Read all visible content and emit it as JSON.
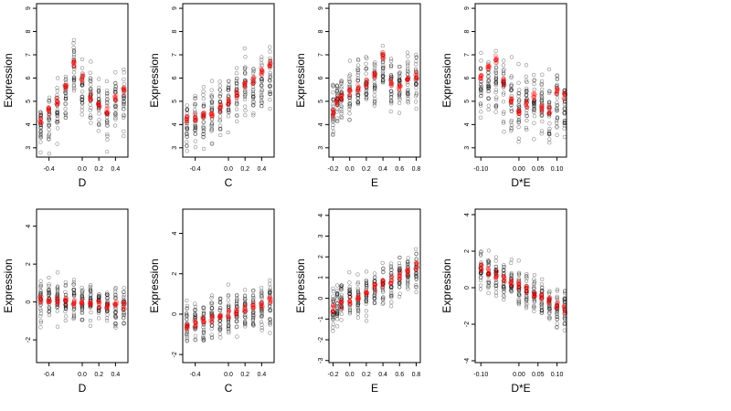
{
  "chart_data": [
    {
      "type": "scatter",
      "xlabel": "D",
      "ylabel": "Expression",
      "xlim": [
        -0.55,
        0.55
      ],
      "ylim": [
        2.6,
        9.2
      ],
      "xticks": [
        -0.4,
        0.0,
        0.2,
        0.4
      ],
      "xtick_labels": [
        "-0.4",
        "0.0",
        "0.2",
        "0.4"
      ],
      "yticks": [
        3,
        4,
        5,
        6,
        7,
        8,
        9
      ],
      "ytick_labels": [
        "3",
        "4",
        "5",
        "6",
        "7",
        "8",
        "9"
      ],
      "x_columns": [
        -0.5,
        -0.4,
        -0.3,
        -0.2,
        -0.1,
        0.0,
        0.1,
        0.2,
        0.3,
        0.4,
        0.5
      ],
      "data_y_center": [
        3.8,
        4.2,
        4.6,
        5.2,
        6.2,
        5.8,
        5.2,
        4.8,
        4.6,
        5.0,
        5.1
      ],
      "data_y_spread": 1.6,
      "fitted": {
        "x": [
          -0.5,
          -0.4,
          -0.3,
          -0.2,
          -0.1,
          0.0,
          0.1,
          0.2,
          0.3,
          0.4,
          0.5
        ],
        "y": [
          4.2,
          4.6,
          5.0,
          5.6,
          6.6,
          6.0,
          5.2,
          4.8,
          4.6,
          5.2,
          5.4
        ]
      }
    },
    {
      "type": "scatter",
      "xlabel": "C",
      "ylabel": "Expression",
      "xlim": [
        -0.55,
        0.55
      ],
      "ylim": [
        2.6,
        9.2
      ],
      "xticks": [
        -0.4,
        0.0,
        0.2,
        0.4
      ],
      "xtick_labels": [
        "-0.4",
        "0.0",
        "0.2",
        "0.4"
      ],
      "yticks": [
        3,
        4,
        5,
        6,
        7,
        8,
        9
      ],
      "ytick_labels": [
        "3",
        "4",
        "5",
        "6",
        "7",
        "8",
        "9"
      ],
      "x_columns": [
        -0.5,
        -0.4,
        -0.3,
        -0.2,
        -0.1,
        0.0,
        0.1,
        0.2,
        0.3,
        0.4,
        0.5
      ],
      "data_y_center": [
        4.0,
        4.2,
        4.3,
        4.4,
        4.6,
        4.9,
        5.2,
        5.5,
        5.6,
        5.8,
        6.1
      ],
      "data_y_spread": 1.6,
      "fitted": {
        "x": [
          -0.5,
          -0.4,
          -0.3,
          -0.2,
          -0.1,
          0.0,
          0.1,
          0.2,
          0.3,
          0.4,
          0.5
        ],
        "y": [
          4.2,
          4.3,
          4.4,
          4.5,
          4.7,
          5.0,
          5.3,
          5.7,
          5.9,
          6.3,
          6.6
        ]
      }
    },
    {
      "type": "scatter",
      "xlabel": "E",
      "ylabel": "Expression",
      "xlim": [
        -0.25,
        0.85
      ],
      "ylim": [
        2.6,
        9.2
      ],
      "xticks": [
        -0.2,
        0.0,
        0.2,
        0.4,
        0.6,
        0.8
      ],
      "xtick_labels": [
        "-0.2",
        "0.0",
        "0.2",
        "0.4",
        "0.6",
        "0.8"
      ],
      "yticks": [
        3,
        4,
        5,
        6,
        7,
        8,
        9
      ],
      "ytick_labels": [
        "3",
        "4",
        "5",
        "6",
        "7",
        "8",
        "9"
      ],
      "x_columns": [
        -0.2,
        -0.15,
        -0.1,
        0.0,
        0.1,
        0.2,
        0.3,
        0.4,
        0.5,
        0.6,
        0.7,
        0.8
      ],
      "data_y_center": [
        4.5,
        5.0,
        5.2,
        5.4,
        5.6,
        5.8,
        6.0,
        6.5,
        5.6,
        5.6,
        5.8,
        6.0
      ],
      "data_y_spread": 1.4,
      "fitted": {
        "x": [
          -0.2,
          -0.15,
          -0.1,
          0.0,
          0.1,
          0.2,
          0.3,
          0.4,
          0.5,
          0.6,
          0.7,
          0.8
        ],
        "y": [
          4.5,
          5.0,
          5.2,
          5.4,
          5.6,
          5.8,
          6.1,
          7.0,
          5.8,
          5.6,
          5.9,
          6.1
        ]
      }
    },
    {
      "type": "scatter",
      "xlabel": "D*E",
      "ylabel": "Expression",
      "xlim": [
        -0.115,
        0.125
      ],
      "ylim": [
        2.6,
        9.2
      ],
      "xticks": [
        -0.1,
        0.0,
        0.05,
        0.1
      ],
      "xtick_labels": [
        "-0.10",
        "0.00",
        "0.05",
        "0.10"
      ],
      "yticks": [
        3,
        4,
        5,
        6,
        7,
        8,
        9
      ],
      "ytick_labels": [
        "3",
        "4",
        "5",
        "6",
        "7",
        "8",
        "9"
      ],
      "x_columns": [
        -0.1,
        -0.08,
        -0.06,
        -0.04,
        -0.02,
        0.0,
        0.02,
        0.04,
        0.06,
        0.08,
        0.1,
        0.12
      ],
      "data_y_center": [
        5.6,
        5.8,
        5.8,
        5.4,
        5.0,
        4.8,
        4.9,
        5.0,
        4.8,
        4.8,
        5.0,
        5.0
      ],
      "data_y_spread": 1.7,
      "fitted": {
        "x": [
          -0.1,
          -0.08,
          -0.06,
          -0.04,
          -0.02,
          0.0,
          0.02,
          0.04,
          0.06,
          0.08,
          0.1,
          0.12
        ],
        "y": [
          6.0,
          6.4,
          6.8,
          5.8,
          5.0,
          4.6,
          4.9,
          5.2,
          4.7,
          4.6,
          5.4,
          5.2
        ]
      }
    },
    {
      "type": "scatter",
      "xlabel": "D",
      "ylabel": "Expression",
      "xlim": [
        -0.55,
        0.55
      ],
      "ylim": [
        -3.2,
        4.9
      ],
      "xticks": [
        -0.4,
        0.0,
        0.2,
        0.4
      ],
      "xtick_labels": [
        "-0.4",
        "0.0",
        "0.2",
        "0.4"
      ],
      "yticks": [
        -2,
        0,
        2,
        4
      ],
      "ytick_labels": [
        "-2",
        "0",
        "2",
        "4"
      ],
      "x_columns": [
        -0.5,
        -0.4,
        -0.3,
        -0.2,
        -0.1,
        0.0,
        0.1,
        0.2,
        0.3,
        0.4,
        0.5
      ],
      "data_y_center": [
        0.2,
        0.1,
        0.1,
        0.0,
        0.0,
        0.0,
        -0.1,
        -0.1,
        -0.1,
        -0.2,
        -0.2
      ],
      "data_y_spread": 1.4,
      "fitted": {
        "x": [
          -0.5,
          -0.4,
          -0.3,
          -0.2,
          -0.1,
          0.0,
          0.1,
          0.2,
          0.3,
          0.4,
          0.5
        ],
        "y": [
          0.12,
          0.08,
          0.05,
          0.02,
          -0.01,
          -0.04,
          -0.07,
          -0.1,
          -0.13,
          -0.16,
          -0.2
        ]
      }
    },
    {
      "type": "scatter",
      "xlabel": "C",
      "ylabel": "Expression",
      "xlim": [
        -0.55,
        0.55
      ],
      "ylim": [
        -2.4,
        5.2
      ],
      "xticks": [
        -0.4,
        0.0,
        0.2,
        0.4
      ],
      "xtick_labels": [
        "-0.4",
        "0.0",
        "0.2",
        "0.4"
      ],
      "yticks": [
        -2,
        0,
        2,
        4
      ],
      "ytick_labels": [
        "-2",
        "0",
        "2",
        "4"
      ],
      "x_columns": [
        -0.5,
        -0.4,
        -0.3,
        -0.2,
        -0.1,
        0.0,
        0.1,
        0.2,
        0.3,
        0.4,
        0.5
      ],
      "data_y_center": [
        -0.5,
        -0.4,
        -0.3,
        -0.2,
        -0.1,
        0.0,
        0.1,
        0.2,
        0.3,
        0.4,
        0.5
      ],
      "data_y_spread": 1.4,
      "fitted": {
        "x": [
          -0.5,
          -0.4,
          -0.3,
          -0.2,
          -0.1,
          0.0,
          0.1,
          0.2,
          0.3,
          0.4,
          0.5
        ],
        "y": [
          -0.55,
          -0.45,
          -0.35,
          -0.25,
          -0.15,
          -0.02,
          0.1,
          0.22,
          0.35,
          0.5,
          0.65
        ]
      }
    },
    {
      "type": "scatter",
      "xlabel": "E",
      "ylabel": "Expression",
      "xlim": [
        -0.25,
        0.85
      ],
      "ylim": [
        -3.1,
        4.3
      ],
      "xticks": [
        -0.2,
        0.0,
        0.2,
        0.4,
        0.6,
        0.8
      ],
      "xtick_labels": [
        "-0.2",
        "0.0",
        "0.2",
        "0.4",
        "0.6",
        "0.8"
      ],
      "yticks": [
        -3,
        -2,
        -1,
        0,
        1,
        2,
        3,
        4
      ],
      "ytick_labels": [
        "-3",
        "-2",
        "-1",
        "0",
        "1",
        "2",
        "3",
        "4"
      ],
      "x_columns": [
        -0.2,
        -0.15,
        -0.1,
        0.0,
        0.1,
        0.2,
        0.3,
        0.4,
        0.5,
        0.6,
        0.7,
        0.8
      ],
      "data_y_center": [
        -0.6,
        -0.2,
        -0.1,
        0.0,
        0.1,
        0.3,
        0.5,
        0.7,
        0.8,
        1.0,
        1.2,
        1.5
      ],
      "data_y_spread": 1.3,
      "fitted": {
        "x": [
          -0.2,
          -0.1,
          0.0,
          0.1,
          0.2,
          0.3,
          0.4,
          0.5,
          0.6,
          0.7,
          0.8
        ],
        "y": [
          -0.5,
          -0.3,
          -0.1,
          0.1,
          0.3,
          0.5,
          0.7,
          0.9,
          1.1,
          1.3,
          1.55
        ]
      }
    },
    {
      "type": "scatter",
      "xlabel": "D*E",
      "ylabel": "Expression",
      "xlim": [
        -0.115,
        0.125
      ],
      "ylim": [
        -4.1,
        4.3
      ],
      "xticks": [
        -0.1,
        0.0,
        0.05,
        0.1
      ],
      "xtick_labels": [
        "-0.10",
        "0.00",
        "0.05",
        "0.10"
      ],
      "yticks": [
        -4,
        -2,
        0,
        2,
        4
      ],
      "ytick_labels": [
        "-4",
        "-2",
        "0",
        "2",
        "4"
      ],
      "x_columns": [
        -0.1,
        -0.08,
        -0.06,
        -0.04,
        -0.02,
        0.0,
        0.02,
        0.04,
        0.06,
        0.08,
        0.1,
        0.12
      ],
      "data_y_center": [
        1.0,
        0.8,
        0.6,
        0.4,
        0.2,
        0.0,
        -0.2,
        -0.4,
        -0.6,
        -0.8,
        -1.0,
        -1.2
      ],
      "data_y_spread": 1.3,
      "fitted": {
        "x": [
          -0.1,
          -0.08,
          -0.06,
          -0.04,
          -0.02,
          0.0,
          0.02,
          0.04,
          0.06,
          0.08,
          0.1,
          0.12
        ],
        "y": [
          1.1,
          0.9,
          0.7,
          0.5,
          0.3,
          0.1,
          -0.1,
          -0.3,
          -0.5,
          -0.7,
          -0.9,
          -1.2
        ]
      }
    }
  ],
  "colors": {
    "points": "#000000",
    "fitted": "#ff0000",
    "axis": "#000000",
    "background": "#ffffff"
  },
  "layout_words": {
    "grid": "off",
    "legend": "none",
    "arrangement": "2 rows x 4 columns"
  }
}
